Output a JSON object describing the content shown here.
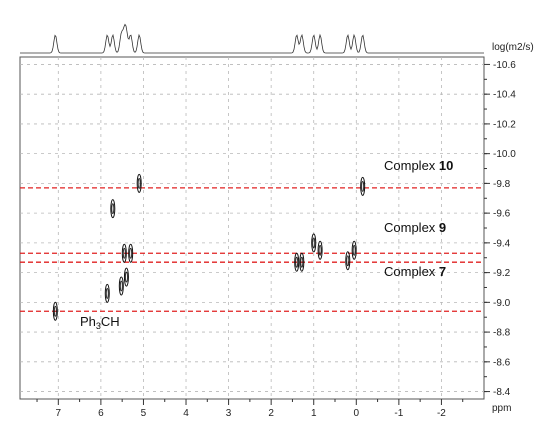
{
  "chart_data": {
    "type": "scatter",
    "subtype": "2D DOSY NMR spectrum",
    "x_unit": "ppm",
    "y_unit": "log(m2/s)",
    "xlim": [
      7.9,
      -3.0
    ],
    "ylim": [
      -10.65,
      -8.35
    ],
    "y_inverted": true,
    "grid": true,
    "x_ticks": [
      "7",
      "6",
      "5",
      "4",
      "3",
      "2",
      "1",
      "0",
      "-1",
      "-2"
    ],
    "y_ticks": [
      "-10.6",
      "-10.4",
      "-10.2",
      "-10.0",
      "-9.8",
      "-9.6",
      "-9.4",
      "-9.2",
      "-9.0",
      "-8.8",
      "-8.6",
      "-8.4"
    ],
    "annotations": [
      {
        "text": "Complex ",
        "bold": "10",
        "log_d": -9.77
      },
      {
        "text": "Complex ",
        "bold": "9",
        "log_d": -9.33
      },
      {
        "text": "Complex ",
        "bold": "7",
        "log_d": -9.27
      },
      {
        "text": "Ph",
        "sub": "3",
        "tail": "CH",
        "log_d": -8.94
      }
    ],
    "reference_lines": [
      -9.77,
      -9.33,
      -9.27,
      -8.94
    ],
    "reference_line_color": "#e02020",
    "peaks": [
      {
        "ppm": 7.07,
        "log_d": -8.94
      },
      {
        "ppm": 5.85,
        "log_d": -9.06
      },
      {
        "ppm": 5.72,
        "log_d": -9.63
      },
      {
        "ppm": 5.52,
        "log_d": -9.11
      },
      {
        "ppm": 5.45,
        "log_d": -9.33
      },
      {
        "ppm": 5.4,
        "log_d": -9.17
      },
      {
        "ppm": 5.3,
        "log_d": -9.33
      },
      {
        "ppm": 5.1,
        "log_d": -9.8
      },
      {
        "ppm": 1.4,
        "log_d": -9.27
      },
      {
        "ppm": 1.28,
        "log_d": -9.27
      },
      {
        "ppm": 1.0,
        "log_d": -9.4
      },
      {
        "ppm": 0.85,
        "log_d": -9.35
      },
      {
        "ppm": 0.2,
        "log_d": -9.28
      },
      {
        "ppm": 0.05,
        "log_d": -9.35
      },
      {
        "ppm": -0.15,
        "log_d": -9.78
      }
    ]
  }
}
